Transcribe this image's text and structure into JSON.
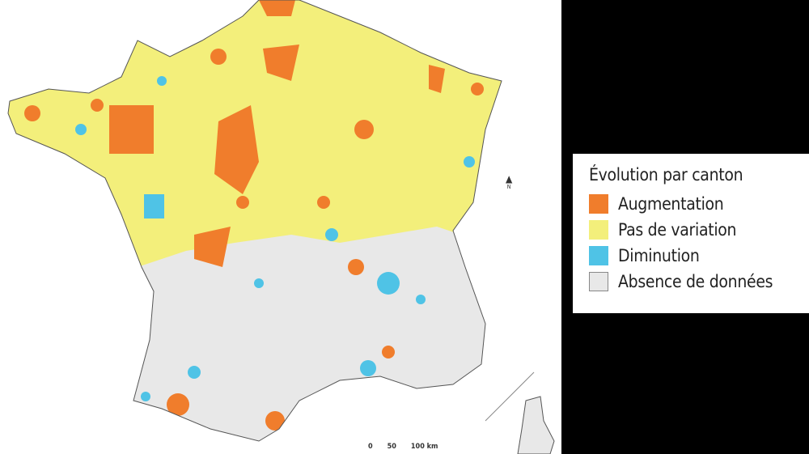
{
  "map": {
    "north_label": "N",
    "scale_labels": [
      "0",
      "50",
      "100 km"
    ]
  },
  "legend": {
    "title": "Évolution par canton",
    "items": [
      {
        "label": "Augmentation",
        "color": "#f07d2c"
      },
      {
        "label": "Pas de variation",
        "color": "#f3ef7b"
      },
      {
        "label": "Diminution",
        "color": "#4fc3e6"
      },
      {
        "label": "Absence de données",
        "color": "#e8e8e8"
      }
    ]
  }
}
